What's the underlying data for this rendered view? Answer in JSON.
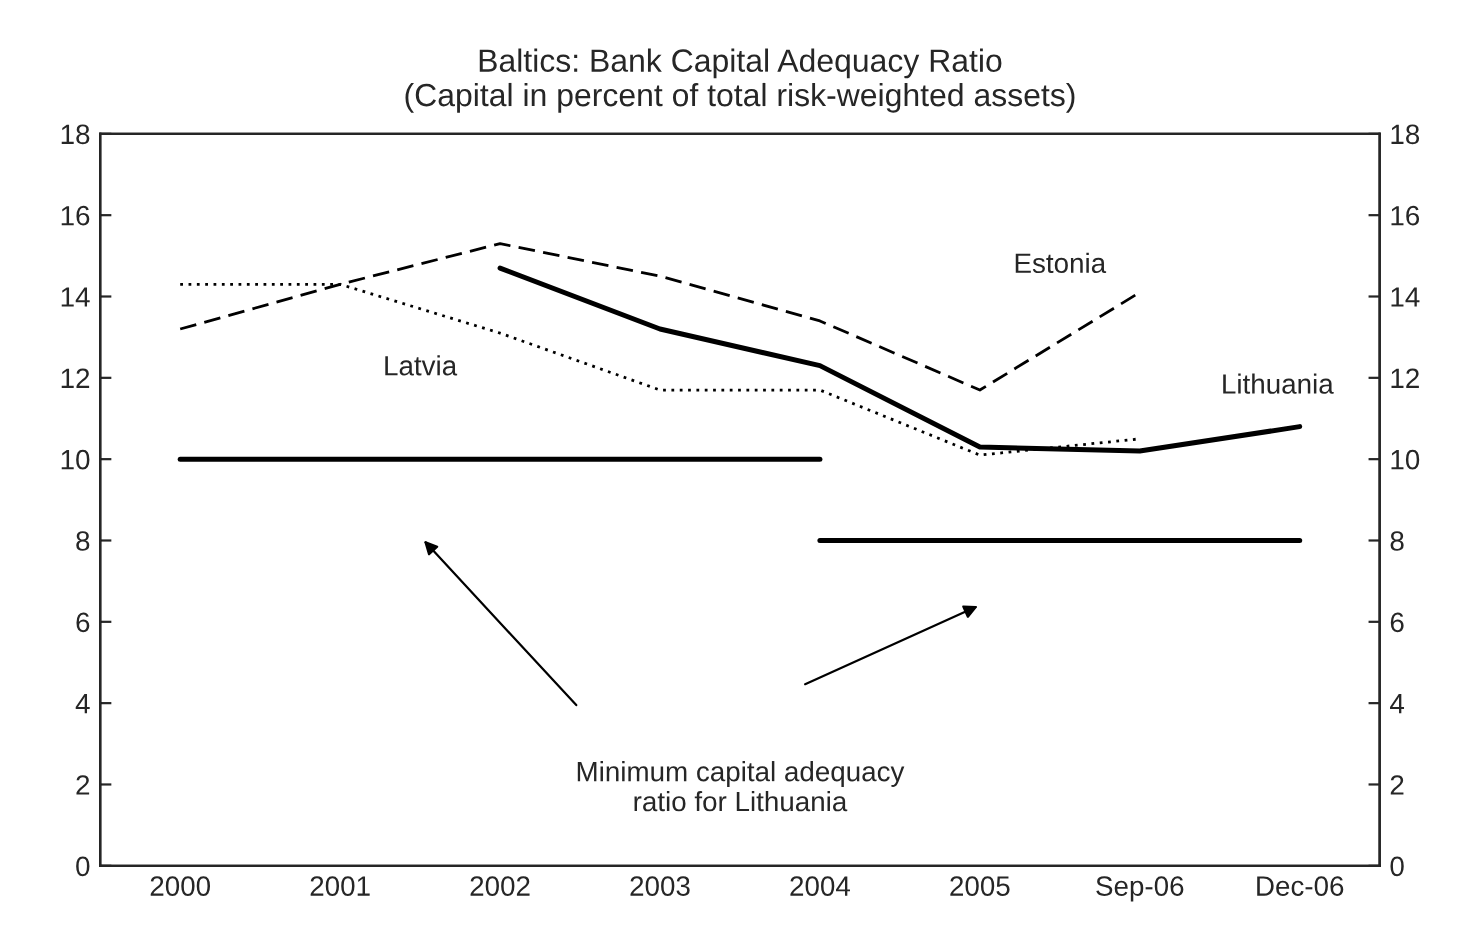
{
  "chart_data": {
    "type": "line",
    "title": "Baltics: Bank Capital Adequacy Ratio\n(Capital in percent of total risk-weighted assets)",
    "categories": [
      "2000",
      "2001",
      "2002",
      "2003",
      "2004",
      "2005",
      "Sep-06",
      "Dec-06"
    ],
    "series": [
      {
        "name": "Estonia",
        "color": "#000000",
        "line_style": "dashed",
        "values": [
          13.2,
          14.3,
          15.3,
          14.5,
          13.4,
          11.7,
          14.1,
          null
        ]
      },
      {
        "name": "Latvia",
        "color": "#000000",
        "line_style": "dotted",
        "values": [
          14.3,
          14.3,
          13.1,
          11.7,
          11.7,
          10.1,
          10.5,
          null
        ]
      },
      {
        "name": "Lithuania",
        "color": "#000000",
        "line_style": "solid",
        "values": [
          null,
          null,
          14.7,
          13.2,
          12.3,
          10.3,
          10.2,
          10.8
        ]
      },
      {
        "color": "#000000",
        "line_style": "solid",
        "values": [
          10,
          10,
          10,
          10,
          10,
          null,
          null,
          null
        ]
      },
      {
        "color": "#000000",
        "line_style": "solid",
        "values": [
          null,
          null,
          null,
          null,
          8,
          8,
          8,
          8
        ]
      }
    ],
    "ylim": [
      0,
      18
    ],
    "yticks": [
      0,
      2,
      4,
      6,
      8,
      10,
      12,
      14,
      16,
      18
    ],
    "y2lim": [
      0,
      18
    ],
    "y2ticks": [
      0,
      2,
      4,
      6,
      8,
      10,
      12,
      14,
      16,
      18
    ],
    "annotations": [
      "Minimum capital adequacy\nratio for Lithuania"
    ],
    "grid": false,
    "legend": false,
    "marker": "none"
  }
}
